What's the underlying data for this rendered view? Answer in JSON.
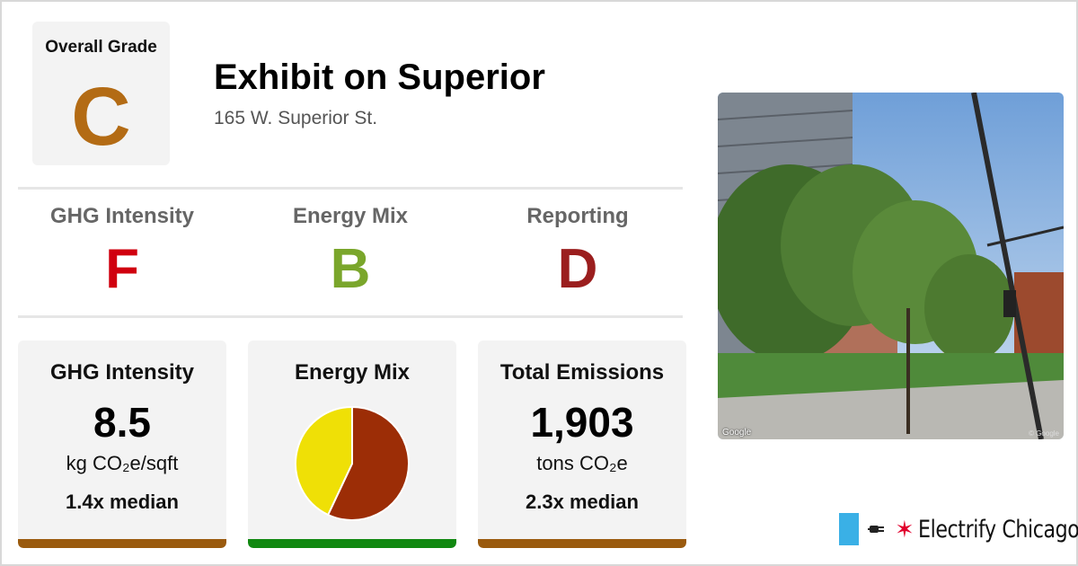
{
  "overall": {
    "label": "Overall Grade",
    "grade": "C",
    "color": "#b36b14"
  },
  "building": {
    "name": "Exhibit on Superior",
    "address": "165 W. Superior St."
  },
  "sub_grades": [
    {
      "name": "GHG Intensity",
      "grade": "F",
      "color": "#d0000f"
    },
    {
      "name": "Energy Mix",
      "grade": "B",
      "color": "#7aa62b"
    },
    {
      "name": "Reporting",
      "grade": "D",
      "color": "#9b1e1e"
    }
  ],
  "cards": {
    "ghg": {
      "title": "GHG Intensity",
      "value": "8.5",
      "unit": "kg CO₂e/sqft",
      "median": "1.4x median",
      "bar_color": "#9a5a0e"
    },
    "mix": {
      "title": "Energy Mix",
      "bar_color": "#118811"
    },
    "emissions": {
      "title": "Total Emissions",
      "value": "1,903",
      "unit": "tons CO₂e",
      "median": "2.3x median",
      "bar_color": "#9a5a0e"
    }
  },
  "chart_data": {
    "type": "pie",
    "slices": [
      {
        "value": 57,
        "color": "#9c2d06"
      },
      {
        "value": 43,
        "color": "#efe006"
      }
    ]
  },
  "photo": {
    "credit_left": "Google",
    "credit_right": "© Google"
  },
  "brand": {
    "name": "Electrify Chicago",
    "colors": {
      "blue": "#3ab0e6",
      "star": "#e1002d"
    }
  }
}
